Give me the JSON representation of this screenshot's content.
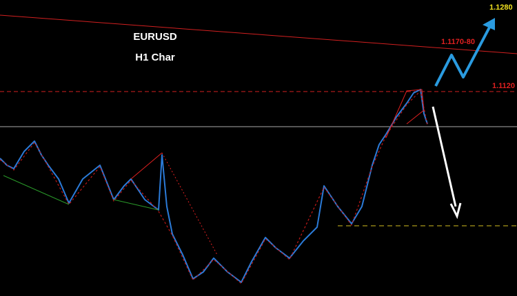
{
  "chart": {
    "symbol": "EURUSD",
    "timeframe": "H1 Char"
  },
  "levels": {
    "target_high": "1.1280",
    "resistance_zone": "1.1170-80",
    "current_level": "1.1120"
  }
}
